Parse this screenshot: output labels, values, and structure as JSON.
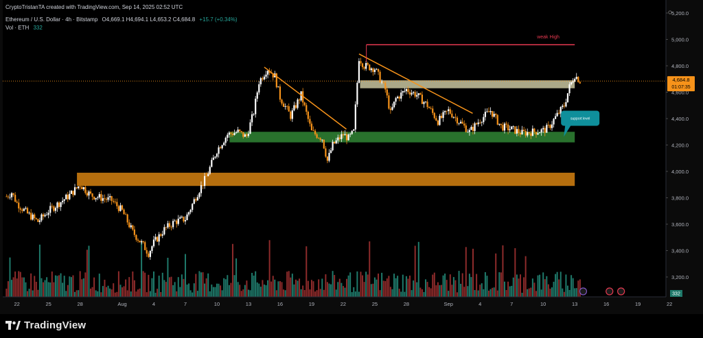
{
  "header": {
    "credit": "CryptoTristanTA created with TradingView.com, Sep 14, 2025 02:52 UTC",
    "symbol": "Ethereum / U.S. Dollar · 4h · Bitstamp",
    "ohlc": "O4,669.1  H4,694.1  L4,653.2  C4,684.8",
    "change": "+15.7 (+0.34%)",
    "vol_label": "Vol · ETH",
    "vol_value": "332"
  },
  "price_tag": {
    "price": "4,684.8",
    "countdown": "01:07:35"
  },
  "annotations": {
    "weak_high": "weak High",
    "support_label": "support level"
  },
  "colors": {
    "up": "#ffffff",
    "down": "#f7931a",
    "vol_up": "#1f7a6b",
    "vol_down": "#8e2b2b",
    "support": "#2e7d32",
    "demand": "#c97a0f",
    "resistance": "#c9c6a0",
    "trendline": "#f7931a",
    "weak_high_line": "#e53950",
    "callout": "#0f8f9b"
  },
  "footer": {
    "brand": "TradingView",
    "brand_icon": "tradingview-logo-icon"
  },
  "chart_data": {
    "type": "candlestick",
    "title": "Ethereum / U.S. Dollar · 4h · Bitstamp",
    "ylim": [
      3100,
      5200
    ],
    "y_ticks": [
      "5,200.0",
      "5,000.0",
      "4,800.0",
      "4,600.0",
      "4,400.0",
      "4,200.0",
      "4,000.0",
      "3,800.0",
      "3,600.0",
      "3,400.0",
      "3,200.0"
    ],
    "y_tick_values": [
      5200,
      5000,
      4800,
      4600,
      4400,
      4200,
      4000,
      3800,
      3600,
      3400,
      3200
    ],
    "x_ticks": [
      "22",
      "25",
      "28",
      "Aug",
      "4",
      "7",
      "10",
      "13",
      "16",
      "19",
      "22",
      "25",
      "28",
      "Sep",
      "4",
      "7",
      "10",
      "13",
      "16",
      "19",
      "22"
    ],
    "x_tick_days": [
      -10,
      -7,
      -4,
      0,
      3,
      6,
      9,
      12,
      15,
      18,
      21,
      24,
      27,
      31,
      34,
      37,
      40,
      43,
      46,
      49,
      52
    ],
    "x_axis_end_day": 53,
    "candles_per_day": 6,
    "series_day_range": [
      -11,
      43.5
    ],
    "price_path": [
      [
        -11,
        3810
      ],
      [
        -10.5,
        3840
      ],
      [
        -10,
        3760
      ],
      [
        -9,
        3680
      ],
      [
        -8,
        3620
      ],
      [
        -7,
        3700
      ],
      [
        -6,
        3760
      ],
      [
        -5,
        3820
      ],
      [
        -4,
        3900
      ],
      [
        -3,
        3820
      ],
      [
        -2,
        3800
      ],
      [
        -1,
        3780
      ],
      [
        0,
        3700
      ],
      [
        1,
        3540
      ],
      [
        2,
        3440
      ],
      [
        2.5,
        3380
      ],
      [
        3,
        3460
      ],
      [
        4,
        3560
      ],
      [
        5,
        3620
      ],
      [
        6,
        3640
      ],
      [
        6.5,
        3720
      ],
      [
        7,
        3810
      ],
      [
        8,
        3960
      ],
      [
        9,
        4160
      ],
      [
        10,
        4280
      ],
      [
        11,
        4300
      ],
      [
        11.8,
        4260
      ],
      [
        12.5,
        4450
      ],
      [
        13,
        4680
      ],
      [
        13.8,
        4780
      ],
      [
        14.5,
        4720
      ],
      [
        15,
        4560
      ],
      [
        16,
        4420
      ],
      [
        17,
        4580
      ],
      [
        18,
        4300
      ],
      [
        19,
        4250
      ],
      [
        19.5,
        4080
      ],
      [
        20,
        4200
      ],
      [
        21,
        4280
      ],
      [
        21.5,
        4250
      ],
      [
        22,
        4300
      ],
      [
        22.5,
        4860
      ],
      [
        23,
        4800
      ],
      [
        24,
        4780
      ],
      [
        25,
        4620
      ],
      [
        25.5,
        4440
      ],
      [
        26,
        4550
      ],
      [
        27,
        4620
      ],
      [
        28,
        4580
      ],
      [
        29,
        4500
      ],
      [
        30,
        4380
      ],
      [
        31,
        4460
      ],
      [
        32,
        4380
      ],
      [
        33,
        4300
      ],
      [
        34,
        4390
      ],
      [
        35,
        4460
      ],
      [
        36,
        4340
      ],
      [
        37,
        4320
      ],
      [
        38,
        4290
      ],
      [
        39,
        4300
      ],
      [
        40,
        4310
      ],
      [
        40.5,
        4330
      ],
      [
        41,
        4390
      ],
      [
        42,
        4500
      ],
      [
        42.5,
        4640
      ],
      [
        43,
        4730
      ],
      [
        43.5,
        4685
      ]
    ],
    "zones": [
      {
        "name": "support",
        "from": 4220,
        "to": 4300,
        "day_start": 10.2,
        "day_end": 43
      },
      {
        "name": "demand",
        "from": 3890,
        "to": 3990,
        "day_start": -4.3,
        "day_end": 43
      },
      {
        "name": "resistance",
        "from": 4630,
        "to": 4690,
        "day_start": 22.6,
        "day_end": 43
      }
    ],
    "trendlines": [
      {
        "name": "trendline-1",
        "from": [
          13.5,
          4790
        ],
        "to": [
          21.3,
          4320
        ]
      },
      {
        "name": "trendline-2",
        "from": [
          22.5,
          4890
        ],
        "to": [
          33.3,
          4440
        ]
      }
    ],
    "weak_high": {
      "value": 4960,
      "day_start": 23.2,
      "day_end": 43
    },
    "current_price": 4684.8
  }
}
